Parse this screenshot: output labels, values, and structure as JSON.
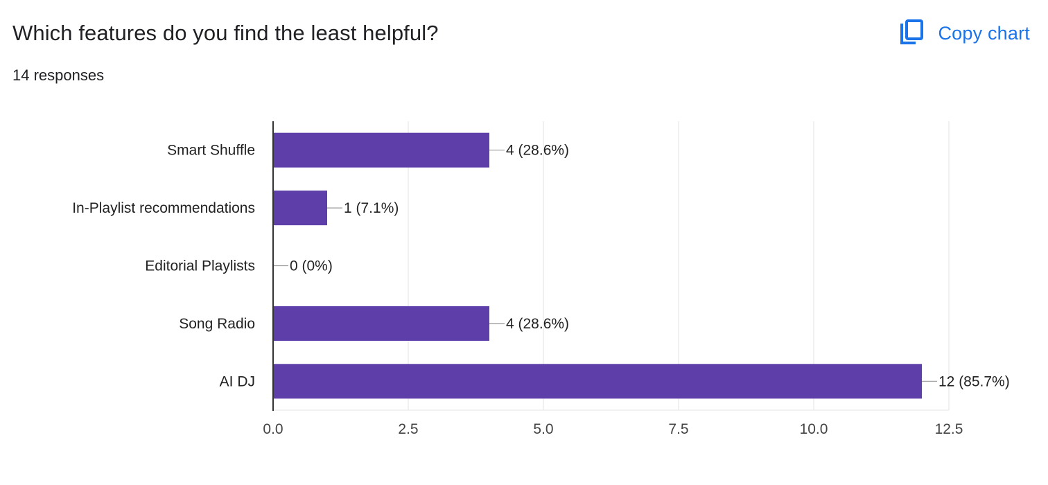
{
  "header": {
    "question": "Which features do you find the least helpful?",
    "responses": "14 responses",
    "copy_chart_label": "Copy chart",
    "copy_icon": "copy-icon"
  },
  "colors": {
    "bar": "#5e3ea9",
    "accent": "#1a73e8",
    "gridline": "#e3e3e3",
    "axis": "#333333"
  },
  "chart_data": {
    "type": "bar",
    "orientation": "horizontal",
    "categories": [
      "Smart Shuffle",
      "In-Playlist recommendations",
      "Editorial Playlists",
      "Song Radio",
      "AI DJ"
    ],
    "values": [
      4,
      1,
      0,
      4,
      12
    ],
    "data_labels": [
      "4 (28.6%)",
      "1 (7.1%)",
      "0 (0%)",
      "4 (28.6%)",
      "12 (85.7%)"
    ],
    "xlim": [
      0,
      12.5
    ],
    "xticks": [
      "0.0",
      "2.5",
      "5.0",
      "7.5",
      "10.0",
      "12.5"
    ],
    "xtick_values": [
      0,
      2.5,
      5,
      7.5,
      10,
      12.5
    ],
    "grid": true,
    "legend": "none"
  }
}
